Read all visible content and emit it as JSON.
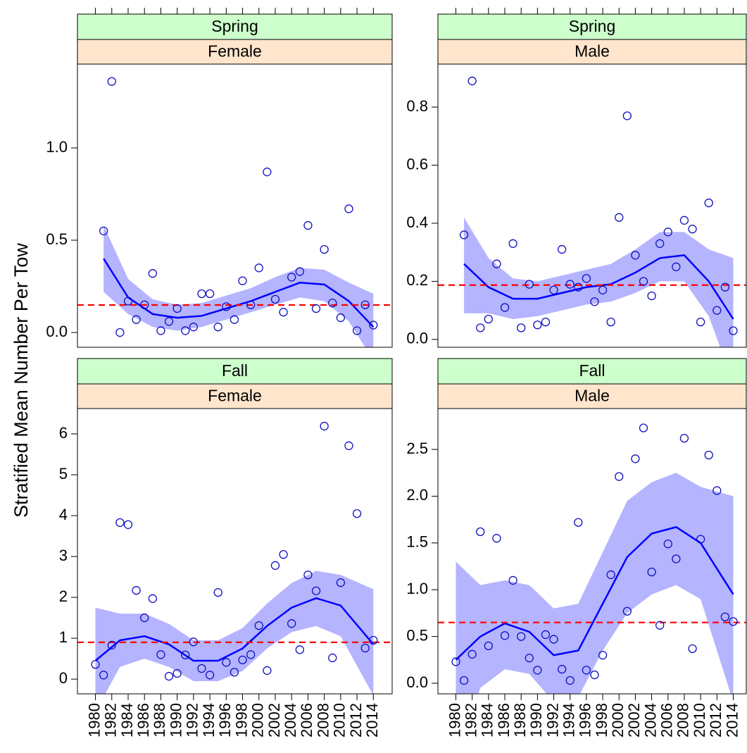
{
  "ylabel": "Stratified Mean Number Per Tow",
  "style": {
    "point_color": "#1010c0",
    "fit_color": "#0000ff",
    "band_color": "#b4b4ff",
    "reference_color": "#ff0000",
    "season_strip_color": "#ccffcc",
    "sex_strip_color": "#ffe5cc"
  },
  "chart_data": [
    {
      "type": "scatter",
      "season": "Spring",
      "sex": "Female",
      "x": [
        1981,
        1982,
        1983,
        1984,
        1985,
        1986,
        1987,
        1988,
        1989,
        1990,
        1991,
        1992,
        1993,
        1994,
        1995,
        1996,
        1997,
        1998,
        1999,
        2000,
        2001,
        2002,
        2003,
        2004,
        2005,
        2006,
        2007,
        2008,
        2009,
        2010,
        2011,
        2012,
        2013,
        2014
      ],
      "values": [
        0.55,
        1.36,
        0.0,
        0.17,
        0.07,
        0.15,
        0.32,
        0.01,
        0.06,
        0.13,
        0.01,
        0.03,
        0.21,
        0.21,
        0.03,
        0.14,
        0.07,
        0.28,
        0.15,
        0.35,
        0.87,
        0.18,
        0.11,
        0.3,
        0.33,
        0.58,
        0.13,
        0.45,
        0.16,
        0.08,
        0.67,
        0.01,
        0.15,
        0.04
      ],
      "fit": {
        "x": [
          1981,
          1984,
          1987,
          1990,
          1993,
          1996,
          1999,
          2002,
          2005,
          2008,
          2011,
          2014
        ],
        "values": [
          0.4,
          0.19,
          0.1,
          0.08,
          0.09,
          0.13,
          0.17,
          0.22,
          0.27,
          0.26,
          0.17,
          0.03
        ],
        "lower": [
          0.22,
          0.1,
          0.03,
          0.01,
          0.03,
          0.07,
          0.11,
          0.15,
          0.19,
          0.17,
          0.06,
          -0.15
        ],
        "upper": [
          0.58,
          0.29,
          0.18,
          0.15,
          0.16,
          0.2,
          0.24,
          0.3,
          0.35,
          0.34,
          0.27,
          0.21
        ]
      },
      "reference": 0.149,
      "xlim": [
        1977.8,
        2016.3
      ],
      "ylim": [
        -0.08,
        1.454
      ],
      "yticks": [
        {
          "value": 0,
          "label": "0.0"
        },
        0.5,
        {
          "value": 1,
          "label": "1.0"
        }
      ]
    },
    {
      "type": "scatter",
      "season": "Spring",
      "sex": "Male",
      "x": [
        1981,
        1982,
        1983,
        1984,
        1985,
        1986,
        1987,
        1988,
        1989,
        1990,
        1991,
        1992,
        1993,
        1994,
        1995,
        1996,
        1997,
        1998,
        1999,
        2000,
        2001,
        2002,
        2003,
        2004,
        2005,
        2006,
        2007,
        2008,
        2009,
        2010,
        2011,
        2012,
        2013,
        2014
      ],
      "values": [
        0.36,
        0.89,
        0.04,
        0.07,
        0.26,
        0.11,
        0.33,
        0.04,
        0.19,
        0.05,
        0.06,
        0.17,
        0.31,
        0.19,
        0.18,
        0.21,
        0.13,
        0.17,
        0.06,
        0.42,
        0.77,
        0.29,
        0.2,
        0.15,
        0.33,
        0.37,
        0.25,
        0.41,
        0.38,
        0.06,
        0.47,
        0.1,
        0.18,
        0.03
      ],
      "fit": {
        "x": [
          1981,
          1984,
          1987,
          1990,
          1993,
          1996,
          1999,
          2002,
          2005,
          2008,
          2011,
          2014
        ],
        "values": [
          0.26,
          0.18,
          0.14,
          0.14,
          0.16,
          0.18,
          0.19,
          0.23,
          0.28,
          0.29,
          0.2,
          0.07
        ],
        "lower": [
          0.09,
          0.09,
          0.07,
          0.08,
          0.1,
          0.12,
          0.13,
          0.16,
          0.2,
          0.2,
          0.08,
          -0.15
        ],
        "upper": [
          0.42,
          0.28,
          0.21,
          0.2,
          0.22,
          0.24,
          0.26,
          0.31,
          0.37,
          0.37,
          0.31,
          0.28
        ]
      },
      "reference": 0.187,
      "xlim": [
        1977.8,
        2015.6
      ],
      "ylim": [
        -0.027,
        0.948
      ],
      "yticks": [
        {
          "value": 0,
          "label": "0.0"
        },
        0.2,
        0.4,
        0.6,
        0.8
      ]
    },
    {
      "type": "scatter",
      "season": "Fall",
      "sex": "Female",
      "x": [
        1980,
        1981,
        1982,
        1983,
        1984,
        1985,
        1986,
        1987,
        1988,
        1989,
        1990,
        1991,
        1992,
        1993,
        1994,
        1995,
        1996,
        1997,
        1998,
        1999,
        2000,
        2001,
        2002,
        2003,
        2004,
        2005,
        2006,
        2007,
        2008,
        2009,
        2010,
        2011,
        2012,
        2013,
        2014
      ],
      "values": [
        0.36,
        0.1,
        0.83,
        3.83,
        3.78,
        2.17,
        1.5,
        1.97,
        0.6,
        0.07,
        0.14,
        0.59,
        0.91,
        0.26,
        0.1,
        2.12,
        0.41,
        0.17,
        0.47,
        0.6,
        1.31,
        0.21,
        2.78,
        3.05,
        1.36,
        0.72,
        2.55,
        2.16,
        6.19,
        0.52,
        2.36,
        5.71,
        4.05,
        0.76,
        0.95
      ],
      "fit": {
        "x": [
          1980,
          1983,
          1986,
          1989,
          1992,
          1995,
          1998,
          2001,
          2004,
          2007,
          2010,
          2014
        ],
        "values": [
          0.45,
          0.95,
          1.05,
          0.85,
          0.45,
          0.45,
          0.75,
          1.3,
          1.75,
          1.98,
          1.8,
          0.85
        ],
        "lower": [
          -0.8,
          0.3,
          0.5,
          0.3,
          -0.05,
          -0.05,
          0.2,
          0.75,
          1.15,
          1.3,
          1.05,
          -0.4
        ],
        "upper": [
          1.75,
          1.6,
          1.6,
          1.35,
          0.95,
          0.95,
          1.25,
          1.85,
          2.35,
          2.65,
          2.55,
          2.2
        ]
      },
      "reference": 0.9,
      "xlim": [
        1977.8,
        2016.3
      ],
      "ylim": [
        -0.36,
        6.62
      ],
      "yticks": [
        0,
        1,
        2,
        3,
        4,
        5,
        6
      ],
      "xticks": [
        1980,
        1982,
        1984,
        1986,
        1988,
        1990,
        1992,
        1994,
        1996,
        1998,
        2000,
        2002,
        2004,
        2006,
        2008,
        2010,
        2012,
        2014
      ]
    },
    {
      "type": "scatter",
      "season": "Fall",
      "sex": "Male",
      "x": [
        1980,
        1981,
        1982,
        1983,
        1984,
        1985,
        1986,
        1987,
        1988,
        1989,
        1990,
        1991,
        1992,
        1993,
        1994,
        1995,
        1996,
        1997,
        1998,
        1999,
        2000,
        2001,
        2002,
        2003,
        2004,
        2005,
        2006,
        2007,
        2008,
        2009,
        2010,
        2011,
        2012,
        2013,
        2014
      ],
      "values": [
        0.23,
        0.03,
        0.31,
        1.62,
        0.4,
        1.55,
        0.51,
        1.1,
        0.5,
        0.27,
        0.14,
        0.52,
        0.47,
        0.15,
        0.03,
        1.72,
        0.14,
        0.09,
        0.3,
        1.16,
        2.21,
        0.77,
        2.4,
        2.73,
        1.19,
        0.62,
        1.49,
        1.33,
        2.62,
        0.37,
        1.54,
        2.44,
        2.06,
        0.71,
        0.66
      ],
      "fit": {
        "x": [
          1980,
          1983,
          1986,
          1989,
          1992,
          1995,
          1998,
          2001,
          2004,
          2007,
          2010,
          2014
        ],
        "values": [
          0.25,
          0.5,
          0.64,
          0.55,
          0.3,
          0.35,
          0.85,
          1.35,
          1.6,
          1.67,
          1.5,
          0.95
        ],
        "lower": [
          -0.8,
          -0.05,
          0.15,
          0.1,
          -0.2,
          -0.15,
          0.35,
          0.75,
          0.95,
          1.05,
          0.9,
          -0.2
        ],
        "upper": [
          1.3,
          1.05,
          1.1,
          1.05,
          0.8,
          0.85,
          1.4,
          1.95,
          2.15,
          2.25,
          2.1,
          2.0
        ]
      },
      "reference": 0.65,
      "xlim": [
        1977.8,
        2015.6
      ],
      "ylim": [
        -0.113,
        2.937
      ],
      "yticks": [
        {
          "value": 0,
          "label": "0.0"
        },
        0.5,
        {
          "value": 1,
          "label": "1.0"
        },
        1.5,
        {
          "value": 2,
          "label": "2.0"
        },
        2.5
      ],
      "xticks": [
        1980,
        1982,
        1984,
        1986,
        1988,
        1990,
        1992,
        1994,
        1996,
        1998,
        2000,
        2002,
        2004,
        2006,
        2008,
        2010,
        2012,
        2014
      ]
    }
  ]
}
